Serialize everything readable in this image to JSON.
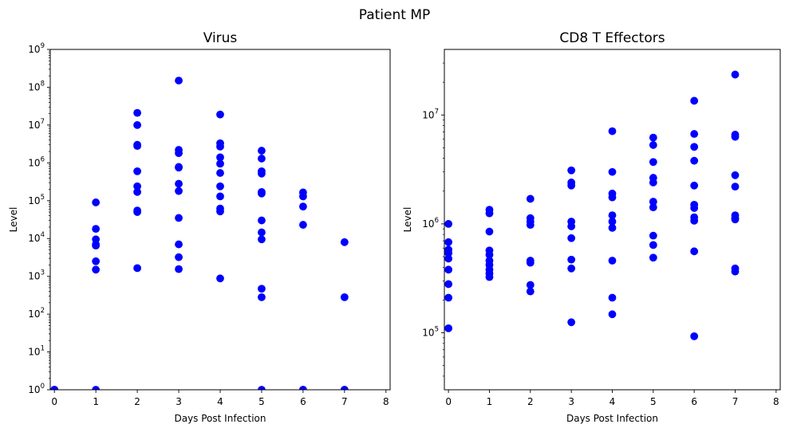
{
  "figure": {
    "suptitle": "Patient MP"
  },
  "colors": {
    "marker": "#0000ff",
    "axes": "#000000",
    "background": "#ffffff"
  },
  "chart_data": [
    {
      "type": "scatter",
      "title": "Virus",
      "xlabel": "Days Post Infection",
      "ylabel": "Level",
      "xlim": [
        -0.1,
        8.1
      ],
      "ylim": [
        1,
        1000000000
      ],
      "yscale": "log",
      "xticks": [
        0,
        1,
        2,
        3,
        4,
        5,
        6,
        7,
        8
      ],
      "yticks": [
        1,
        10,
        100,
        1000,
        10000,
        100000,
        1000000,
        10000000,
        100000000,
        1000000000
      ],
      "ytick_labels": [
        {
          "base": "10",
          "exp": "0"
        },
        {
          "base": "10",
          "exp": "1"
        },
        {
          "base": "10",
          "exp": "2"
        },
        {
          "base": "10",
          "exp": "3"
        },
        {
          "base": "10",
          "exp": "4"
        },
        {
          "base": "10",
          "exp": "5"
        },
        {
          "base": "10",
          "exp": "6"
        },
        {
          "base": "10",
          "exp": "7"
        },
        {
          "base": "10",
          "exp": "8"
        },
        {
          "base": "10",
          "exp": "9"
        }
      ],
      "grid": false,
      "points": [
        [
          0,
          1
        ],
        [
          0,
          1
        ],
        [
          0,
          1
        ],
        [
          1,
          90000
        ],
        [
          1,
          18000
        ],
        [
          1,
          9500
        ],
        [
          1,
          7000
        ],
        [
          1,
          6500
        ],
        [
          1,
          2500
        ],
        [
          1,
          1500
        ],
        [
          1,
          1
        ],
        [
          2,
          21000000
        ],
        [
          2,
          10000000
        ],
        [
          2,
          3000000
        ],
        [
          2,
          2800000
        ],
        [
          2,
          600000
        ],
        [
          2,
          240000
        ],
        [
          2,
          170000
        ],
        [
          2,
          55000
        ],
        [
          2,
          50000
        ],
        [
          2,
          1650
        ],
        [
          3,
          150000000
        ],
        [
          3,
          2200000
        ],
        [
          3,
          1800000
        ],
        [
          3,
          780000
        ],
        [
          3,
          750000
        ],
        [
          3,
          280000
        ],
        [
          3,
          180000
        ],
        [
          3,
          35000
        ],
        [
          3,
          7000
        ],
        [
          3,
          3200
        ],
        [
          3,
          1550
        ],
        [
          4,
          19000000
        ],
        [
          4,
          3300000
        ],
        [
          4,
          2700000
        ],
        [
          4,
          1400000
        ],
        [
          4,
          950000
        ],
        [
          4,
          540000
        ],
        [
          4,
          240000
        ],
        [
          4,
          130000
        ],
        [
          4,
          62000
        ],
        [
          4,
          52000
        ],
        [
          4,
          880
        ],
        [
          5,
          2100000
        ],
        [
          5,
          1300000
        ],
        [
          5,
          600000
        ],
        [
          5,
          520000
        ],
        [
          5,
          170000
        ],
        [
          5,
          155000
        ],
        [
          5,
          30000
        ],
        [
          5,
          14500
        ],
        [
          5,
          9500
        ],
        [
          5,
          470
        ],
        [
          5,
          280
        ],
        [
          5,
          1
        ],
        [
          6,
          165000
        ],
        [
          6,
          130000
        ],
        [
          6,
          70000
        ],
        [
          6,
          23000
        ],
        [
          6,
          1
        ],
        [
          6,
          1
        ],
        [
          7,
          8000
        ],
        [
          7,
          280
        ],
        [
          7,
          1
        ],
        [
          7,
          1
        ]
      ]
    },
    {
      "type": "scatter",
      "title": "CD8 T Effectors",
      "xlabel": "Days Post Infection",
      "ylabel": "Level",
      "xlim": [
        -0.1,
        8.1
      ],
      "ylim": [
        30000,
        40000000
      ],
      "yscale": "log",
      "xticks": [
        0,
        1,
        2,
        3,
        4,
        5,
        6,
        7,
        8
      ],
      "yticks": [
        100000,
        1000000,
        10000000
      ],
      "ytick_labels": [
        {
          "base": "10",
          "exp": "5"
        },
        {
          "base": "10",
          "exp": "6"
        },
        {
          "base": "10",
          "exp": "7"
        }
      ],
      "grid": false,
      "points": [
        [
          0,
          1000000
        ],
        [
          0,
          680000
        ],
        [
          0,
          580000
        ],
        [
          0,
          540000
        ],
        [
          0,
          480000
        ],
        [
          0,
          380000
        ],
        [
          0,
          280000
        ],
        [
          0,
          210000
        ],
        [
          0,
          110000
        ],
        [
          1,
          1350000
        ],
        [
          1,
          1250000
        ],
        [
          1,
          850000
        ],
        [
          1,
          570000
        ],
        [
          1,
          520000
        ],
        [
          1,
          460000
        ],
        [
          1,
          420000
        ],
        [
          1,
          380000
        ],
        [
          1,
          350000
        ],
        [
          1,
          325000
        ],
        [
          2,
          1700000
        ],
        [
          2,
          1130000
        ],
        [
          2,
          1050000
        ],
        [
          2,
          980000
        ],
        [
          2,
          460000
        ],
        [
          2,
          440000
        ],
        [
          2,
          275000
        ],
        [
          2,
          240000
        ],
        [
          3,
          3100000
        ],
        [
          3,
          2400000
        ],
        [
          3,
          2250000
        ],
        [
          3,
          1050000
        ],
        [
          3,
          950000
        ],
        [
          3,
          740000
        ],
        [
          3,
          470000
        ],
        [
          3,
          390000
        ],
        [
          3,
          125000
        ],
        [
          4,
          7100000
        ],
        [
          4,
          3000000
        ],
        [
          4,
          1900000
        ],
        [
          4,
          1750000
        ],
        [
          4,
          1200000
        ],
        [
          4,
          1050000
        ],
        [
          4,
          920000
        ],
        [
          4,
          460000
        ],
        [
          4,
          210000
        ],
        [
          4,
          148000
        ],
        [
          5,
          6200000
        ],
        [
          5,
          5300000
        ],
        [
          5,
          3700000
        ],
        [
          5,
          2650000
        ],
        [
          5,
          2400000
        ],
        [
          5,
          1600000
        ],
        [
          5,
          1420000
        ],
        [
          5,
          780000
        ],
        [
          5,
          640000
        ],
        [
          5,
          490000
        ],
        [
          6,
          13500000
        ],
        [
          6,
          6700000
        ],
        [
          6,
          5100000
        ],
        [
          6,
          3800000
        ],
        [
          6,
          2250000
        ],
        [
          6,
          1500000
        ],
        [
          6,
          1400000
        ],
        [
          6,
          1150000
        ],
        [
          6,
          1070000
        ],
        [
          6,
          560000
        ],
        [
          6,
          93000
        ],
        [
          7,
          23500000
        ],
        [
          7,
          6600000
        ],
        [
          7,
          6300000
        ],
        [
          7,
          2800000
        ],
        [
          7,
          2200000
        ],
        [
          7,
          1200000
        ],
        [
          7,
          1130000
        ],
        [
          7,
          1100000
        ],
        [
          7,
          390000
        ],
        [
          7,
          365000
        ]
      ]
    }
  ]
}
